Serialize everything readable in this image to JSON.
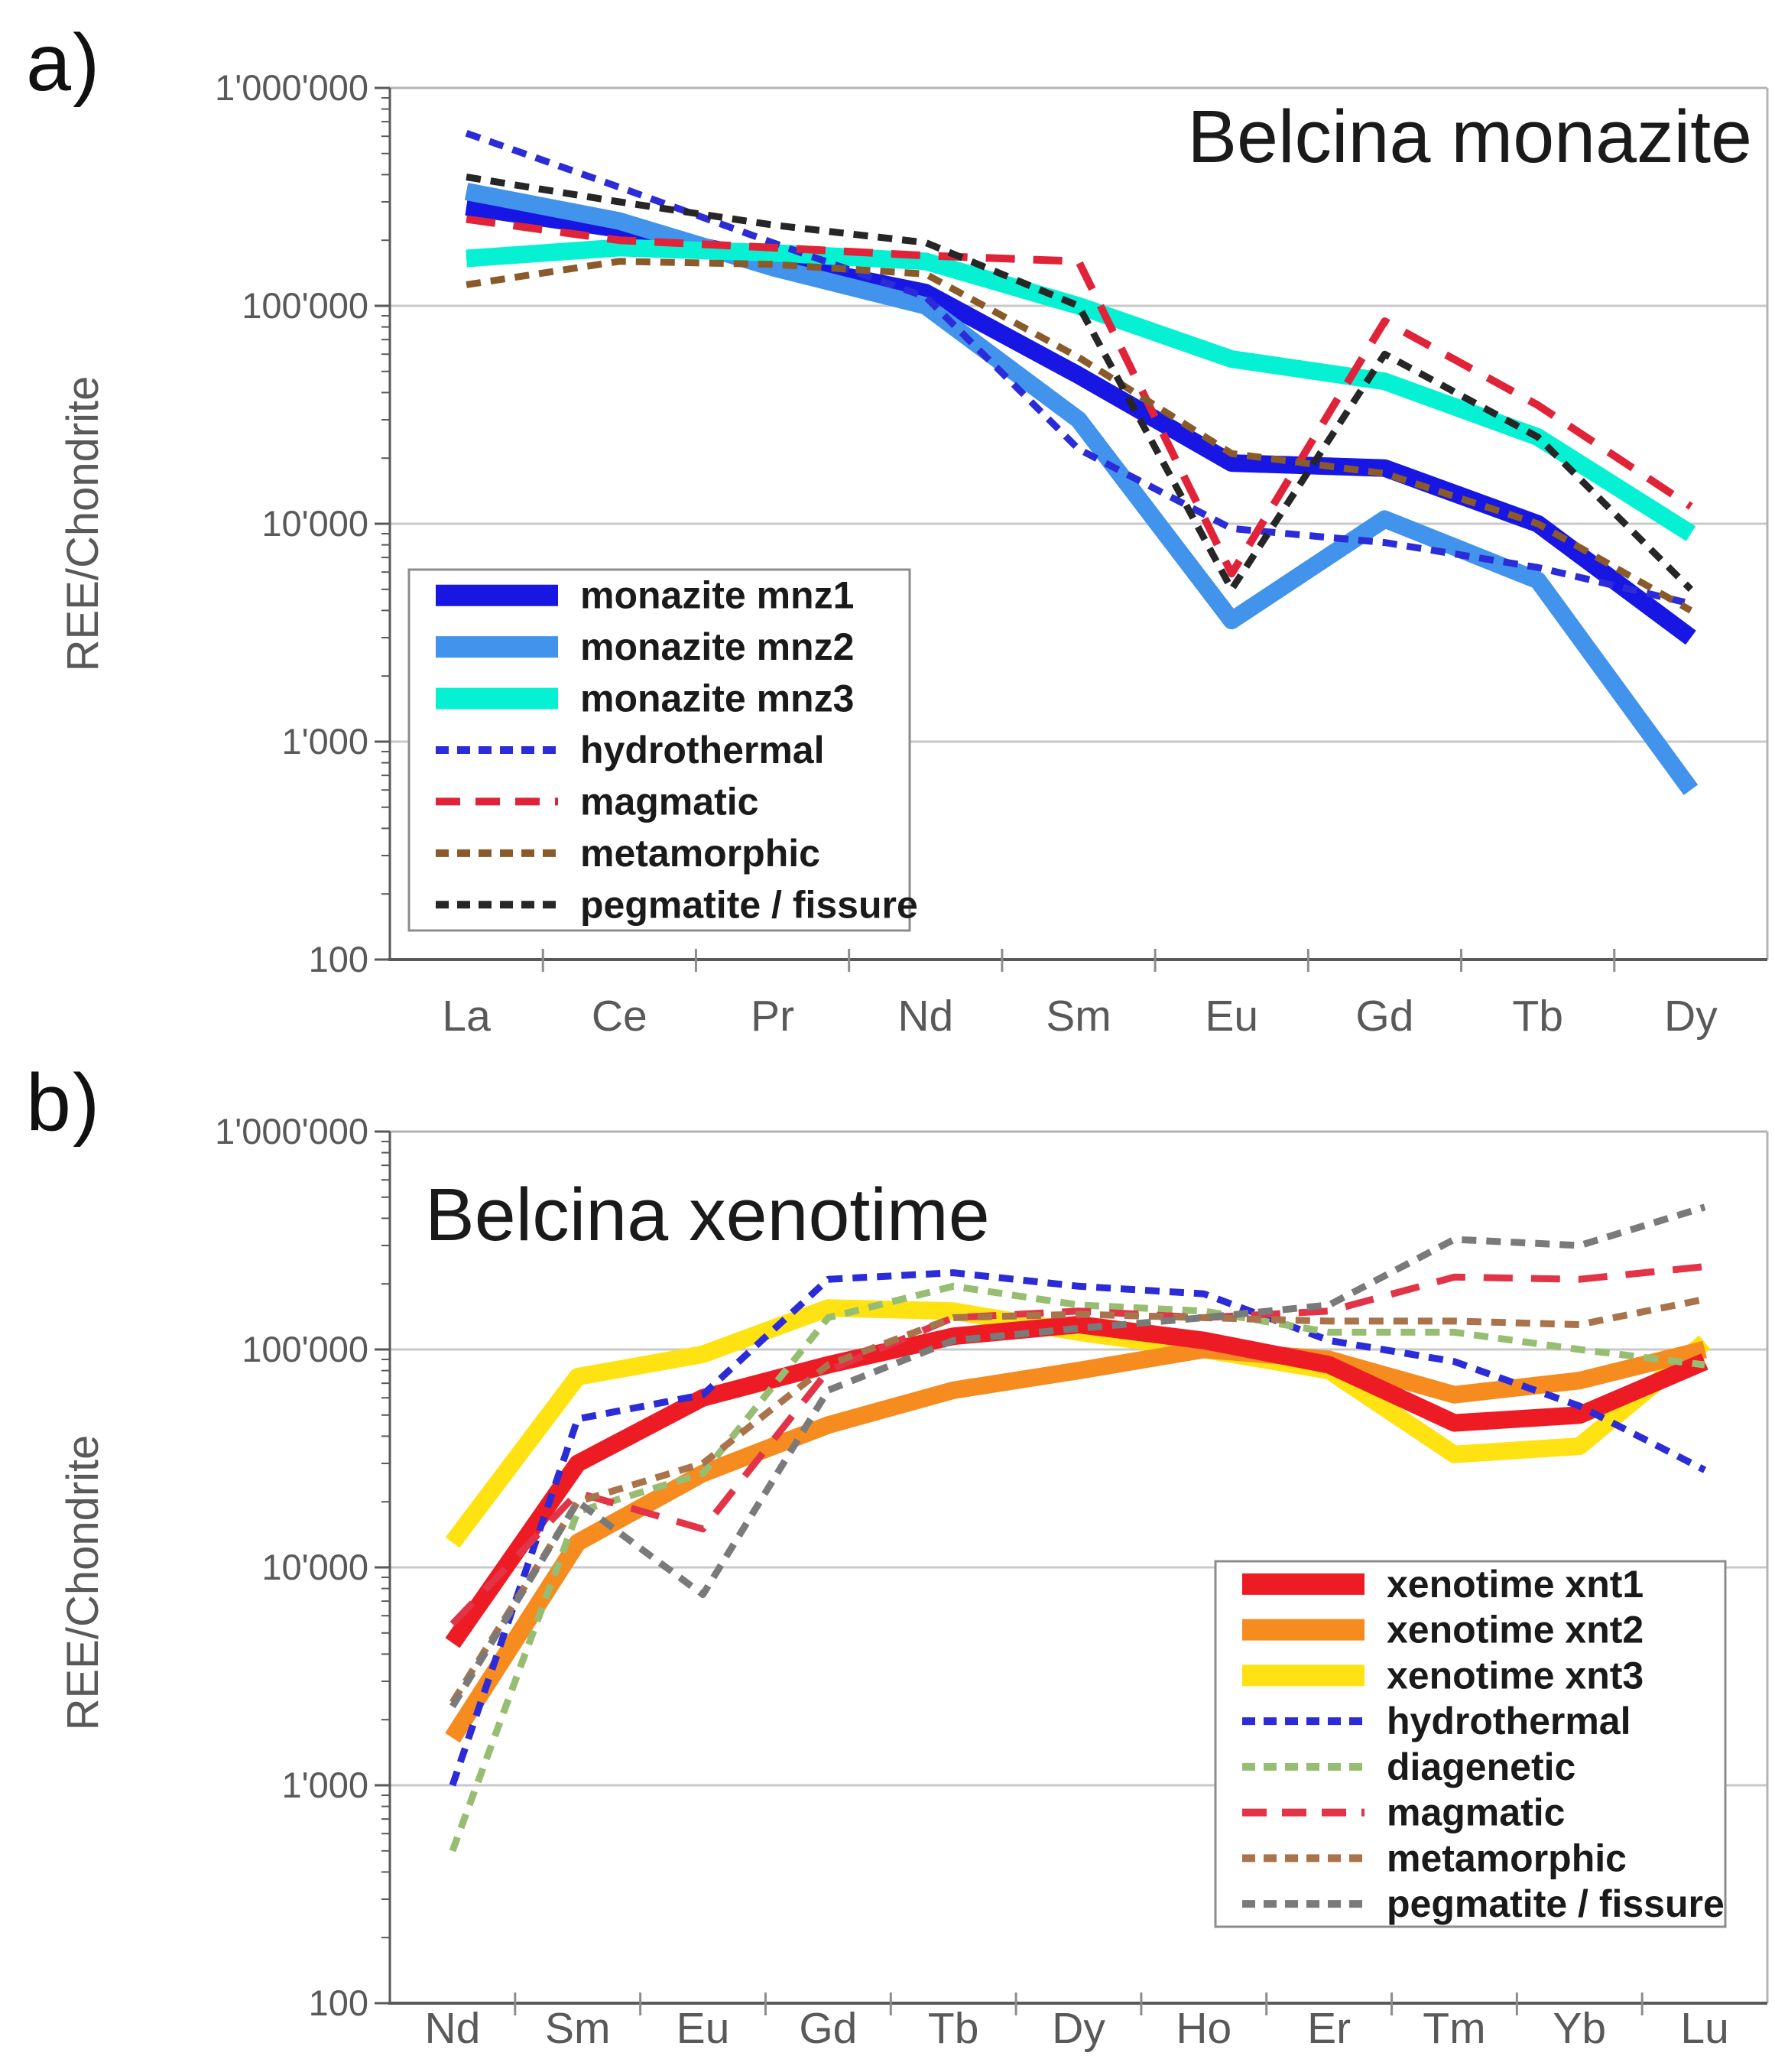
{
  "figure": {
    "panel_a_letter": "a)",
    "panel_b_letter": "b)"
  },
  "chart_data": [
    {
      "type": "line",
      "title": "Belcina monazite",
      "title_position": "top-right-inside",
      "ylabel": "REE/Chondrite",
      "y_scale": "log",
      "ylim": [
        100,
        1000000
      ],
      "ytick_labels": [
        "1'000'000",
        "100'000",
        "10'000",
        "1'000",
        "100"
      ],
      "grid": true,
      "legend_position": "middle-left-inside",
      "x_categories": [
        "La",
        "Ce",
        "Pr",
        "Nd",
        "Sm",
        "Eu",
        "Gd",
        "Tb",
        "Dy"
      ],
      "series": [
        {
          "name": "monazite mnz1",
          "color": "#1716e3",
          "style": "solid",
          "width": 23,
          "z": 1,
          "values": [
            285000,
            225000,
            160000,
            115000,
            48000,
            19000,
            18000,
            10000,
            3000
          ]
        },
        {
          "name": "monazite mnz2",
          "color": "#4193ec",
          "style": "solid",
          "width": 23,
          "z": 2,
          "values": [
            335000,
            245000,
            150000,
            100000,
            30000,
            3600,
            10500,
            5500,
            600
          ]
        },
        {
          "name": "monazite mnz3",
          "color": "#06f1d3",
          "style": "solid",
          "width": 23,
          "z": 3,
          "values": [
            165000,
            185000,
            175000,
            160000,
            100000,
            57000,
            45000,
            25000,
            9000
          ]
        },
        {
          "name": "hydrothermal",
          "color": "#2b2bd8",
          "style": "dashed",
          "width": 9,
          "values": [
            620000,
            350000,
            195000,
            110000,
            22000,
            9500,
            8200,
            6300,
            4300
          ]
        },
        {
          "name": "magmatic",
          "color": "#e02339",
          "style": "long-dash",
          "width": 10,
          "values": [
            250000,
            200000,
            185000,
            170000,
            160000,
            5900,
            85000,
            35000,
            12000
          ]
        },
        {
          "name": "metamorphic",
          "color": "#8a5a2b",
          "style": "dashed",
          "width": 9,
          "values": [
            125000,
            160000,
            155000,
            140000,
            58000,
            21000,
            17000,
            10000,
            4000
          ]
        },
        {
          "name": "pegmatite / fissure",
          "color": "#262626",
          "style": "dashed",
          "width": 9,
          "values": [
            390000,
            300000,
            235000,
            195000,
            100000,
            5000,
            60000,
            25000,
            5000
          ]
        }
      ]
    },
    {
      "type": "line",
      "title": "Belcina xenotime",
      "title_position": "top-left-inside",
      "ylabel": "REE/Chondrite",
      "y_scale": "log",
      "ylim": [
        100,
        1000000
      ],
      "ytick_labels": [
        "1'000'000",
        "100'000",
        "10'000",
        "1'000",
        "100"
      ],
      "grid": true,
      "legend_position": "bottom-right-inside",
      "x_categories": [
        "Nd",
        "Sm",
        "Eu",
        "Gd",
        "Tb",
        "Dy",
        "Ho",
        "Er",
        "Tm",
        "Yb",
        "Lu"
      ],
      "series": [
        {
          "name": "xenotime xnt1",
          "color": "#ed1c24",
          "style": "solid",
          "width": 23,
          "z": 3,
          "values": [
            4500,
            30000,
            60000,
            85000,
            115000,
            130000,
            110000,
            85000,
            46000,
            50000,
            88000
          ]
        },
        {
          "name": "xenotime xnt2",
          "color": "#f68b1f",
          "style": "solid",
          "width": 23,
          "z": 2,
          "values": [
            1650,
            13000,
            27000,
            45000,
            65000,
            80000,
            100000,
            90000,
            62000,
            72000,
            100000
          ]
        },
        {
          "name": "xenotime xnt3",
          "color": "#ffe212",
          "style": "solid",
          "width": 23,
          "z": 1,
          "values": [
            13000,
            75000,
            95000,
            155000,
            150000,
            120000,
            100000,
            80000,
            33000,
            36000,
            108000
          ]
        },
        {
          "name": "hydrothermal",
          "color": "#2b2bd8",
          "style": "dashed",
          "width": 9,
          "values": [
            1000,
            48000,
            62000,
            210000,
            225000,
            195000,
            180000,
            110000,
            88000,
            55000,
            28000
          ]
        },
        {
          "name": "diagenetic",
          "color": "#97bd72",
          "style": "dashed",
          "width": 9,
          "values": [
            500,
            18000,
            27000,
            140000,
            195000,
            160000,
            150000,
            120000,
            120000,
            100000,
            85000
          ]
        },
        {
          "name": "magmatic",
          "color": "#e23347",
          "style": "long-dash",
          "width": 9,
          "values": [
            5500,
            22000,
            15000,
            80000,
            140000,
            150000,
            140000,
            150000,
            215000,
            210000,
            240000
          ]
        },
        {
          "name": "metamorphic",
          "color": "#a9734b",
          "style": "dashed",
          "width": 9,
          "values": [
            2400,
            20000,
            30000,
            85000,
            140000,
            145000,
            140000,
            135000,
            135000,
            130000,
            170000
          ]
        },
        {
          "name": "pegmatite / fissure",
          "color": "#7a7a7a",
          "style": "dashed",
          "width": 9,
          "values": [
            2300,
            20000,
            7500,
            65000,
            110000,
            125000,
            140000,
            160000,
            320000,
            300000,
            450000
          ]
        }
      ]
    }
  ]
}
